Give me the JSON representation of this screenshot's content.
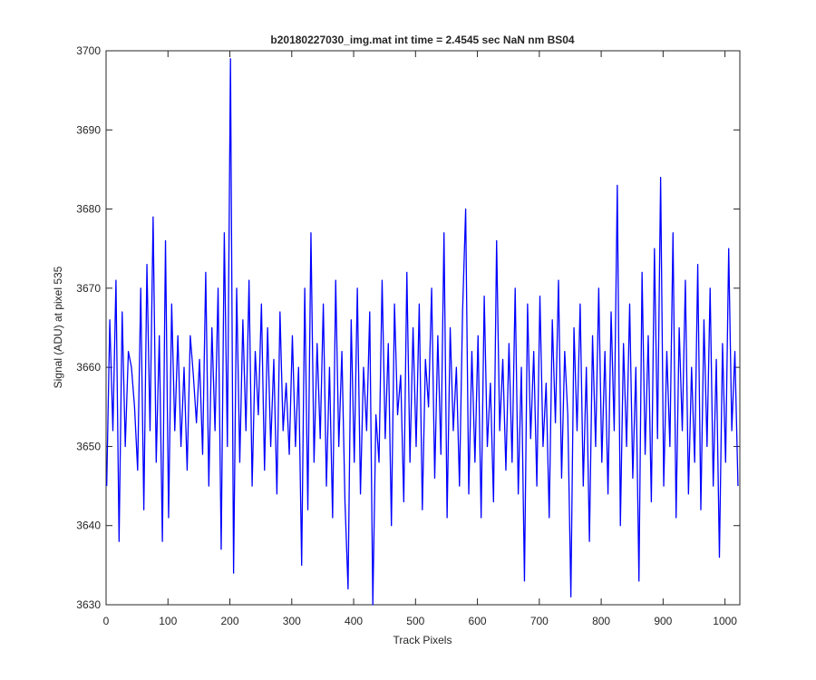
{
  "chart_data": {
    "type": "line",
    "title": "b20180227030_img.mat int time = 2.4545 sec  NaN nm BS04",
    "x_label": "Track Pixels",
    "y_label": "Signal (ADU) at pixel 535",
    "color": "#0000ff",
    "xlim": [
      0,
      1024
    ],
    "ylim": [
      3630,
      3700
    ],
    "xticks": [
      0,
      100,
      200,
      300,
      400,
      500,
      600,
      700,
      800,
      900,
      1000
    ],
    "yticks": [
      3630,
      3640,
      3650,
      3660,
      3670,
      3680,
      3690,
      3700
    ],
    "grid": false,
    "x": [
      1,
      6,
      11,
      16,
      21,
      26,
      31,
      36,
      41,
      46,
      51,
      56,
      61,
      66,
      71,
      76,
      81,
      86,
      91,
      96,
      101,
      106,
      111,
      116,
      121,
      126,
      131,
      136,
      141,
      146,
      151,
      156,
      161,
      166,
      171,
      176,
      181,
      186,
      191,
      196,
      201,
      206,
      211,
      216,
      221,
      226,
      231,
      236,
      241,
      246,
      251,
      256,
      261,
      266,
      271,
      276,
      281,
      286,
      291,
      296,
      301,
      306,
      311,
      316,
      321,
      326,
      331,
      336,
      341,
      346,
      351,
      356,
      361,
      366,
      371,
      376,
      381,
      386,
      391,
      396,
      401,
      406,
      411,
      416,
      421,
      426,
      431,
      436,
      441,
      446,
      451,
      456,
      461,
      466,
      471,
      476,
      481,
      486,
      491,
      496,
      501,
      506,
      511,
      516,
      521,
      526,
      531,
      536,
      541,
      546,
      551,
      556,
      561,
      566,
      571,
      576,
      581,
      586,
      591,
      596,
      601,
      606,
      611,
      616,
      621,
      626,
      631,
      636,
      641,
      646,
      651,
      656,
      661,
      666,
      671,
      676,
      681,
      686,
      691,
      696,
      701,
      706,
      711,
      716,
      721,
      726,
      731,
      736,
      741,
      746,
      751,
      756,
      761,
      766,
      771,
      776,
      781,
      786,
      791,
      796,
      801,
      806,
      811,
      816,
      821,
      826,
      831,
      836,
      841,
      846,
      851,
      856,
      861,
      866,
      871,
      876,
      881,
      886,
      891,
      896,
      901,
      906,
      911,
      916,
      921,
      926,
      931,
      936,
      941,
      946,
      951,
      956,
      961,
      966,
      971,
      976,
      981,
      986,
      991,
      996,
      1001,
      1006,
      1011,
      1016,
      1021
    ],
    "values": [
      3645,
      3666,
      3652,
      3671,
      3638,
      3667,
      3650,
      3662,
      3660,
      3655,
      3647,
      3670,
      3642,
      3673,
      3652,
      3679,
      3648,
      3664,
      3638,
      3676,
      3641,
      3668,
      3652,
      3664,
      3650,
      3660,
      3647,
      3664,
      3659,
      3653,
      3661,
      3649,
      3672,
      3645,
      3665,
      3652,
      3670,
      3637,
      3677,
      3650,
      3699,
      3634,
      3670,
      3648,
      3666,
      3652,
      3671,
      3645,
      3662,
      3654,
      3668,
      3647,
      3665,
      3650,
      3661,
      3644,
      3667,
      3652,
      3658,
      3649,
      3664,
      3650,
      3660,
      3635,
      3670,
      3642,
      3677,
      3648,
      3663,
      3651,
      3668,
      3645,
      3660,
      3641,
      3671,
      3650,
      3662,
      3643,
      3632,
      3666,
      3648,
      3670,
      3644,
      3660,
      3652,
      3667,
      3630,
      3654,
      3648,
      3671,
      3651,
      3663,
      3640,
      3668,
      3654,
      3659,
      3643,
      3672,
      3648,
      3665,
      3650,
      3668,
      3642,
      3661,
      3655,
      3670,
      3646,
      3664,
      3649,
      3677,
      3641,
      3665,
      3652,
      3660,
      3645,
      3667,
      3680,
      3644,
      3662,
      3648,
      3664,
      3641,
      3669,
      3650,
      3658,
      3643,
      3676,
      3652,
      3661,
      3647,
      3663,
      3648,
      3670,
      3644,
      3660,
      3633,
      3668,
      3651,
      3662,
      3645,
      3669,
      3650,
      3658,
      3641,
      3666,
      3653,
      3671,
      3646,
      3662,
      3654,
      3631,
      3665,
      3652,
      3668,
      3645,
      3660,
      3638,
      3664,
      3650,
      3670,
      3648,
      3662,
      3644,
      3667,
      3652,
      3683,
      3640,
      3663,
      3650,
      3668,
      3646,
      3660,
      3633,
      3672,
      3649,
      3664,
      3643,
      3675,
      3651,
      3684,
      3645,
      3662,
      3650,
      3677,
      3641,
      3665,
      3652,
      3671,
      3644,
      3660,
      3648,
      3673,
      3642,
      3666,
      3650,
      3670,
      3645,
      3661,
      3636,
      3663,
      3648,
      3675,
      3652,
      3662,
      3645
    ]
  }
}
